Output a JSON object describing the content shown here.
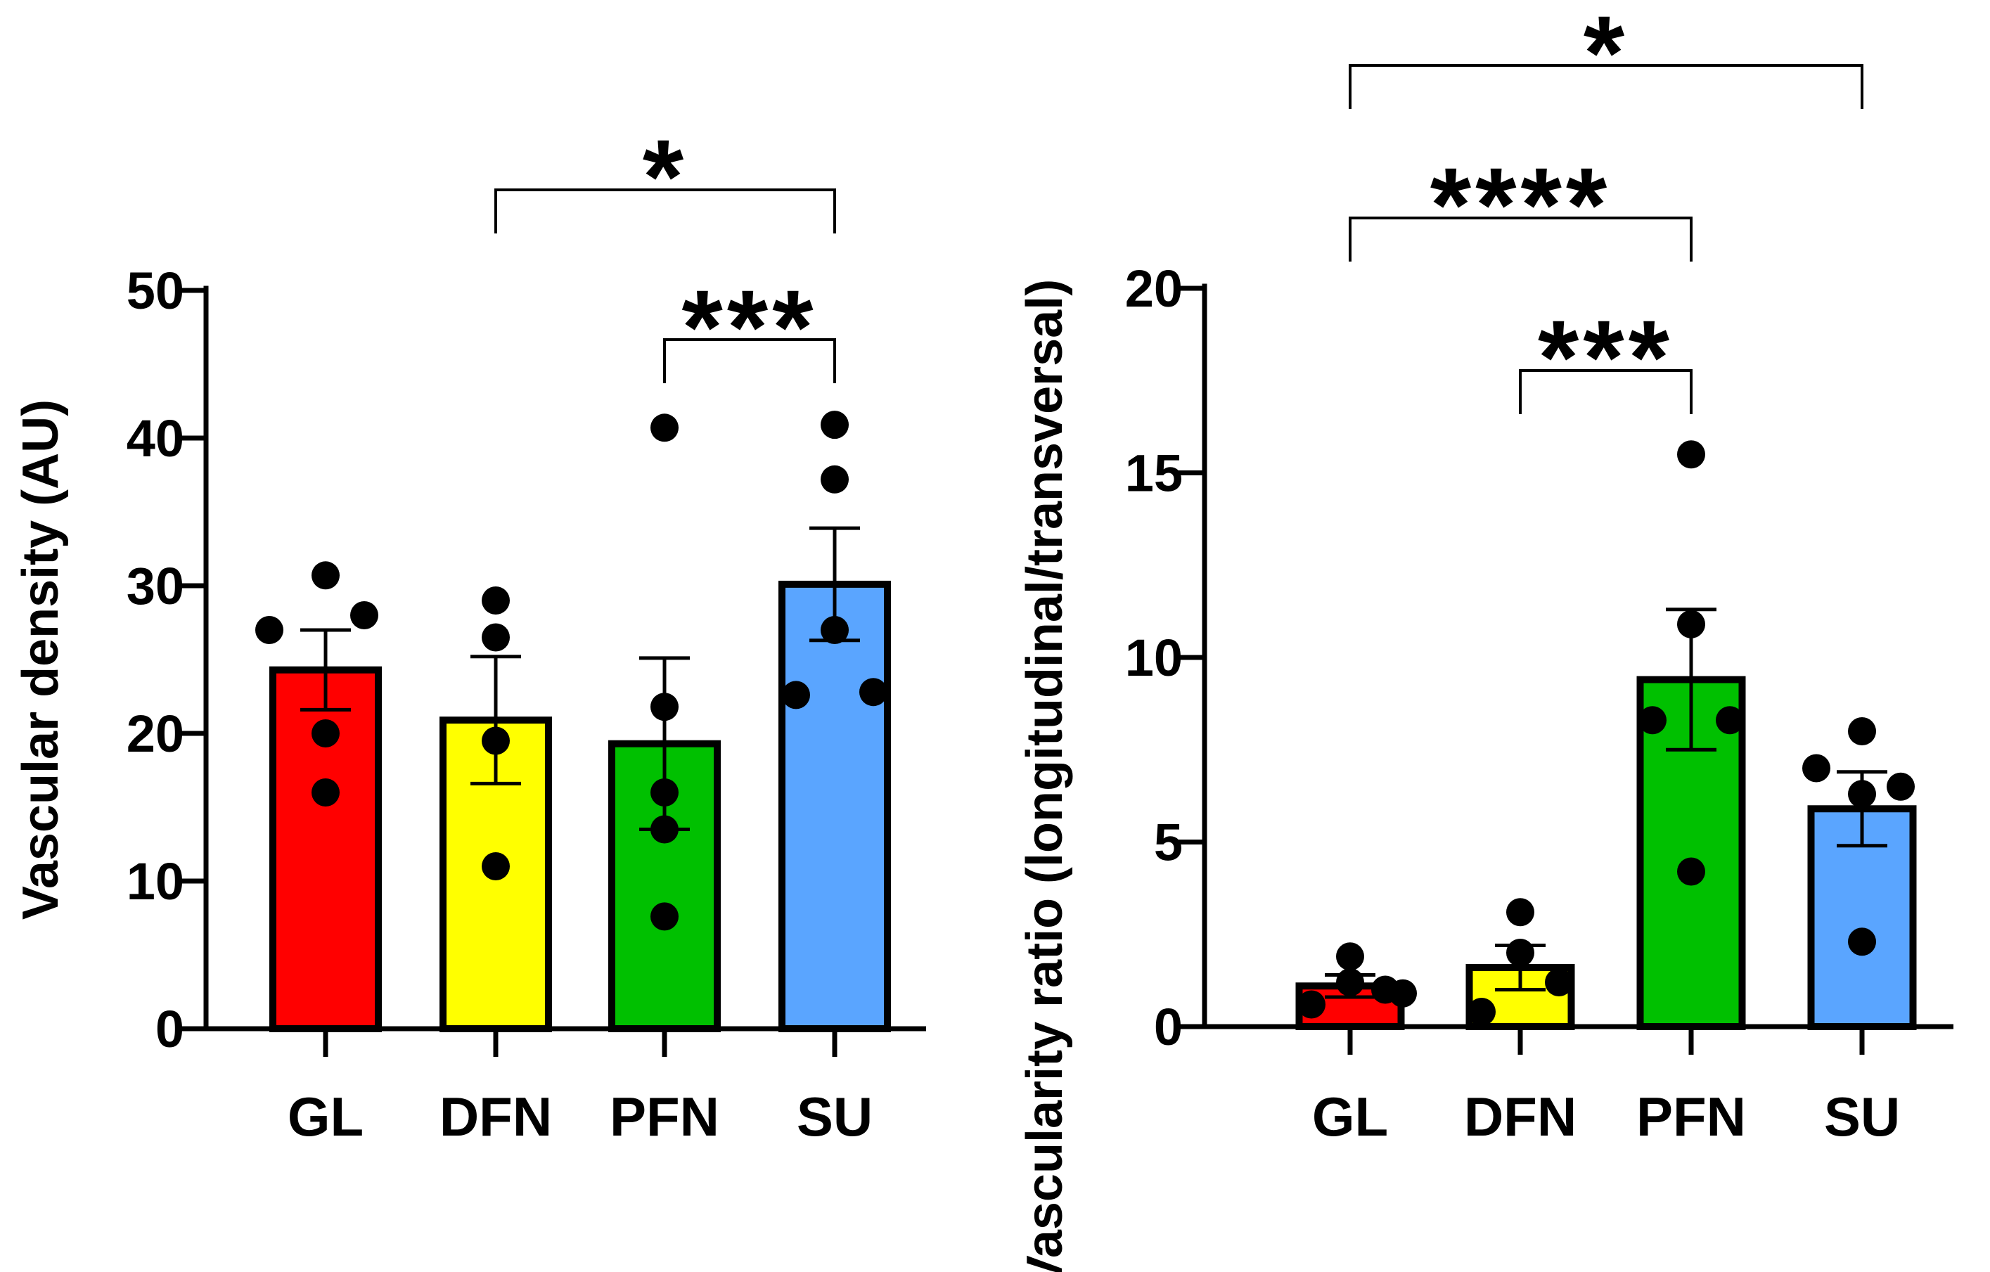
{
  "chart_data": [
    {
      "type": "bar",
      "title": "",
      "xlabel": "",
      "ylabel": "Vascular density (AU)",
      "ylim": [
        0,
        50
      ],
      "yticks": [
        0,
        10,
        20,
        30,
        40,
        50
      ],
      "categories": [
        "GL",
        "DFN",
        "PFN",
        "SU"
      ],
      "colors": [
        "#ff0000",
        "#ffff00",
        "#00c000",
        "#5aa5ff"
      ],
      "values": [
        24.3,
        20.9,
        19.3,
        30.1
      ],
      "sem": [
        2.7,
        4.3,
        5.8,
        3.8
      ],
      "points": [
        [
          30.7,
          27.0,
          28.0,
          20.0,
          16.0
        ],
        [
          29.0,
          26.5,
          19.5,
          11.0
        ],
        [
          40.7,
          21.8,
          16.0,
          13.5,
          7.6
        ],
        [
          40.9,
          37.2,
          27.0,
          22.6,
          22.8
        ]
      ],
      "significance": [
        {
          "from": "DFN",
          "to": "SU",
          "label": "*"
        },
        {
          "from": "PFN",
          "to": "SU",
          "label": "***"
        }
      ]
    },
    {
      "type": "bar",
      "title": "",
      "xlabel": "",
      "ylabel": "Vascularity ratio (longitudinal/transversal)",
      "ylim": [
        0,
        20
      ],
      "yticks": [
        0,
        5,
        10,
        15,
        20
      ],
      "categories": [
        "GL",
        "DFN",
        "PFN",
        "SU"
      ],
      "colors": [
        "#ff0000",
        "#ffff00",
        "#00c000",
        "#5aa5ff"
      ],
      "values": [
        1.1,
        1.6,
        9.4,
        5.9
      ],
      "sem": [
        0.3,
        0.6,
        1.9,
        1.0
      ],
      "points": [
        [
          1.9,
          0.6,
          1.2,
          1.0,
          0.9
        ],
        [
          3.1,
          2.0,
          1.2,
          0.4
        ],
        [
          15.5,
          10.9,
          8.3,
          8.3,
          4.2
        ],
        [
          8.0,
          7.0,
          6.3,
          6.5,
          2.3
        ]
      ],
      "significance": [
        {
          "from": "GL",
          "to": "SU",
          "label": "*"
        },
        {
          "from": "GL",
          "to": "PFN",
          "label": "****"
        },
        {
          "from": "DFN",
          "to": "PFN",
          "label": "***"
        }
      ]
    }
  ]
}
